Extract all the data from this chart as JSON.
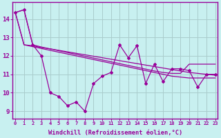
{
  "bg_color": "#c8f0f0",
  "line_color": "#990099",
  "grid_color": "#b0dada",
  "xlabel": "Windchill (Refroidissement éolien,°C)",
  "ylabel_ticks": [
    9,
    10,
    11,
    12,
    13,
    14
  ],
  "xlim": [
    -0.3,
    23.3
  ],
  "ylim": [
    8.6,
    14.9
  ],
  "x": [
    0,
    1,
    2,
    3,
    4,
    5,
    6,
    7,
    8,
    9,
    10,
    11,
    12,
    13,
    14,
    15,
    16,
    17,
    18,
    19,
    20,
    21,
    22,
    23
  ],
  "y_jagged": [
    14.35,
    14.5,
    12.6,
    12.0,
    10.0,
    9.8,
    9.3,
    9.5,
    9.0,
    10.5,
    10.9,
    11.1,
    12.6,
    11.9,
    12.55,
    10.5,
    11.55,
    10.6,
    11.3,
    11.3,
    11.2,
    10.3,
    11.0,
    11.0
  ],
  "y_trend1": [
    14.35,
    12.6,
    12.55,
    12.45,
    12.38,
    12.3,
    12.22,
    12.14,
    12.06,
    11.98,
    11.9,
    11.82,
    11.74,
    11.66,
    11.58,
    11.5,
    11.42,
    11.34,
    11.26,
    11.18,
    11.1,
    11.05,
    11.0,
    10.95
  ],
  "y_trend2": [
    14.35,
    12.6,
    12.5,
    12.4,
    12.3,
    12.2,
    12.1,
    12.0,
    11.9,
    11.8,
    11.7,
    11.6,
    11.5,
    11.4,
    11.3,
    11.2,
    11.1,
    11.0,
    10.9,
    10.85,
    10.8,
    10.8,
    10.8,
    10.8
  ],
  "y_trend3": [
    14.35,
    14.5,
    12.6,
    12.48,
    12.38,
    12.28,
    12.18,
    12.08,
    11.98,
    11.88,
    11.78,
    11.68,
    11.58,
    11.48,
    11.38,
    11.28,
    11.18,
    11.1,
    11.05,
    11.05,
    11.55,
    11.55,
    11.55,
    11.55
  ]
}
